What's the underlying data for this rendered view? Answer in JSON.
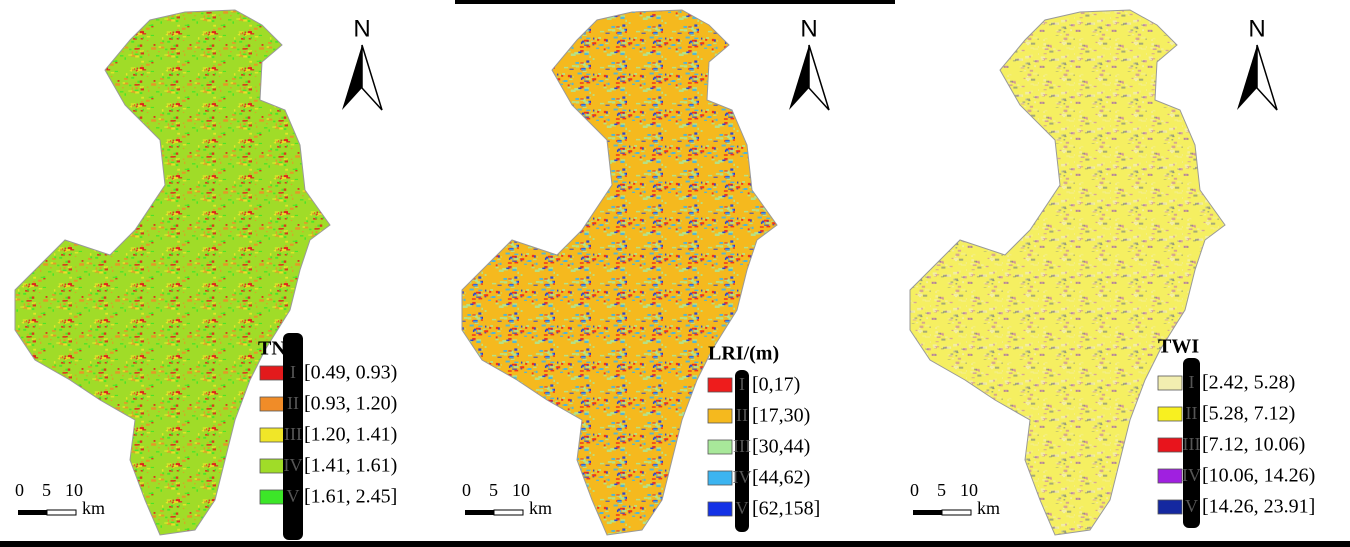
{
  "panels": [
    {
      "north": "N",
      "legend": {
        "title": "TNI",
        "classes": [
          {
            "id": "I",
            "range": "[0.49, 0.93)",
            "color": "#e31a1c"
          },
          {
            "id": "II",
            "range": "[0.93, 1.20)",
            "color": "#f08c28"
          },
          {
            "id": "III",
            "range": "[1.20, 1.41)",
            "color": "#f0e628"
          },
          {
            "id": "IV",
            "range": "[1.41, 1.61)",
            "color": "#a0dc28"
          },
          {
            "id": "V",
            "range": "[1.61, 2.45]",
            "color": "#3ce628"
          }
        ]
      },
      "scale": {
        "ticks": [
          "0",
          "5",
          "10"
        ],
        "unit": "km"
      }
    },
    {
      "north": "N",
      "legend": {
        "title": "LRI/(m)",
        "classes": [
          {
            "id": "I",
            "range": "[0,17)",
            "color": "#ee1c1c"
          },
          {
            "id": "II",
            "range": "[17,30)",
            "color": "#f5b91e"
          },
          {
            "id": "III",
            "range": "[30,44)",
            "color": "#a8e89a"
          },
          {
            "id": "IV",
            "range": "[44,62)",
            "color": "#3cb4f0"
          },
          {
            "id": "V",
            "range": "[62,158]",
            "color": "#1432e6"
          }
        ]
      },
      "scale": {
        "ticks": [
          "0",
          "5",
          "10"
        ],
        "unit": "km"
      }
    },
    {
      "north": "N",
      "legend": {
        "title": "TWI",
        "classes": [
          {
            "id": "I",
            "range": "[2.42, 5.28)",
            "color": "#f2eeb0"
          },
          {
            "id": "II",
            "range": "[5.28, 7.12)",
            "color": "#f8f020"
          },
          {
            "id": "III",
            "range": "[7.12, 10.06)",
            "color": "#e8141c"
          },
          {
            "id": "IV",
            "range": "[10.06, 14.26)",
            "color": "#a020e0"
          },
          {
            "id": "V",
            "range": "[14.26, 23.91]",
            "color": "#1428a0"
          }
        ]
      },
      "scale": {
        "ticks": [
          "0",
          "5",
          "10"
        ],
        "unit": "km"
      }
    }
  ]
}
